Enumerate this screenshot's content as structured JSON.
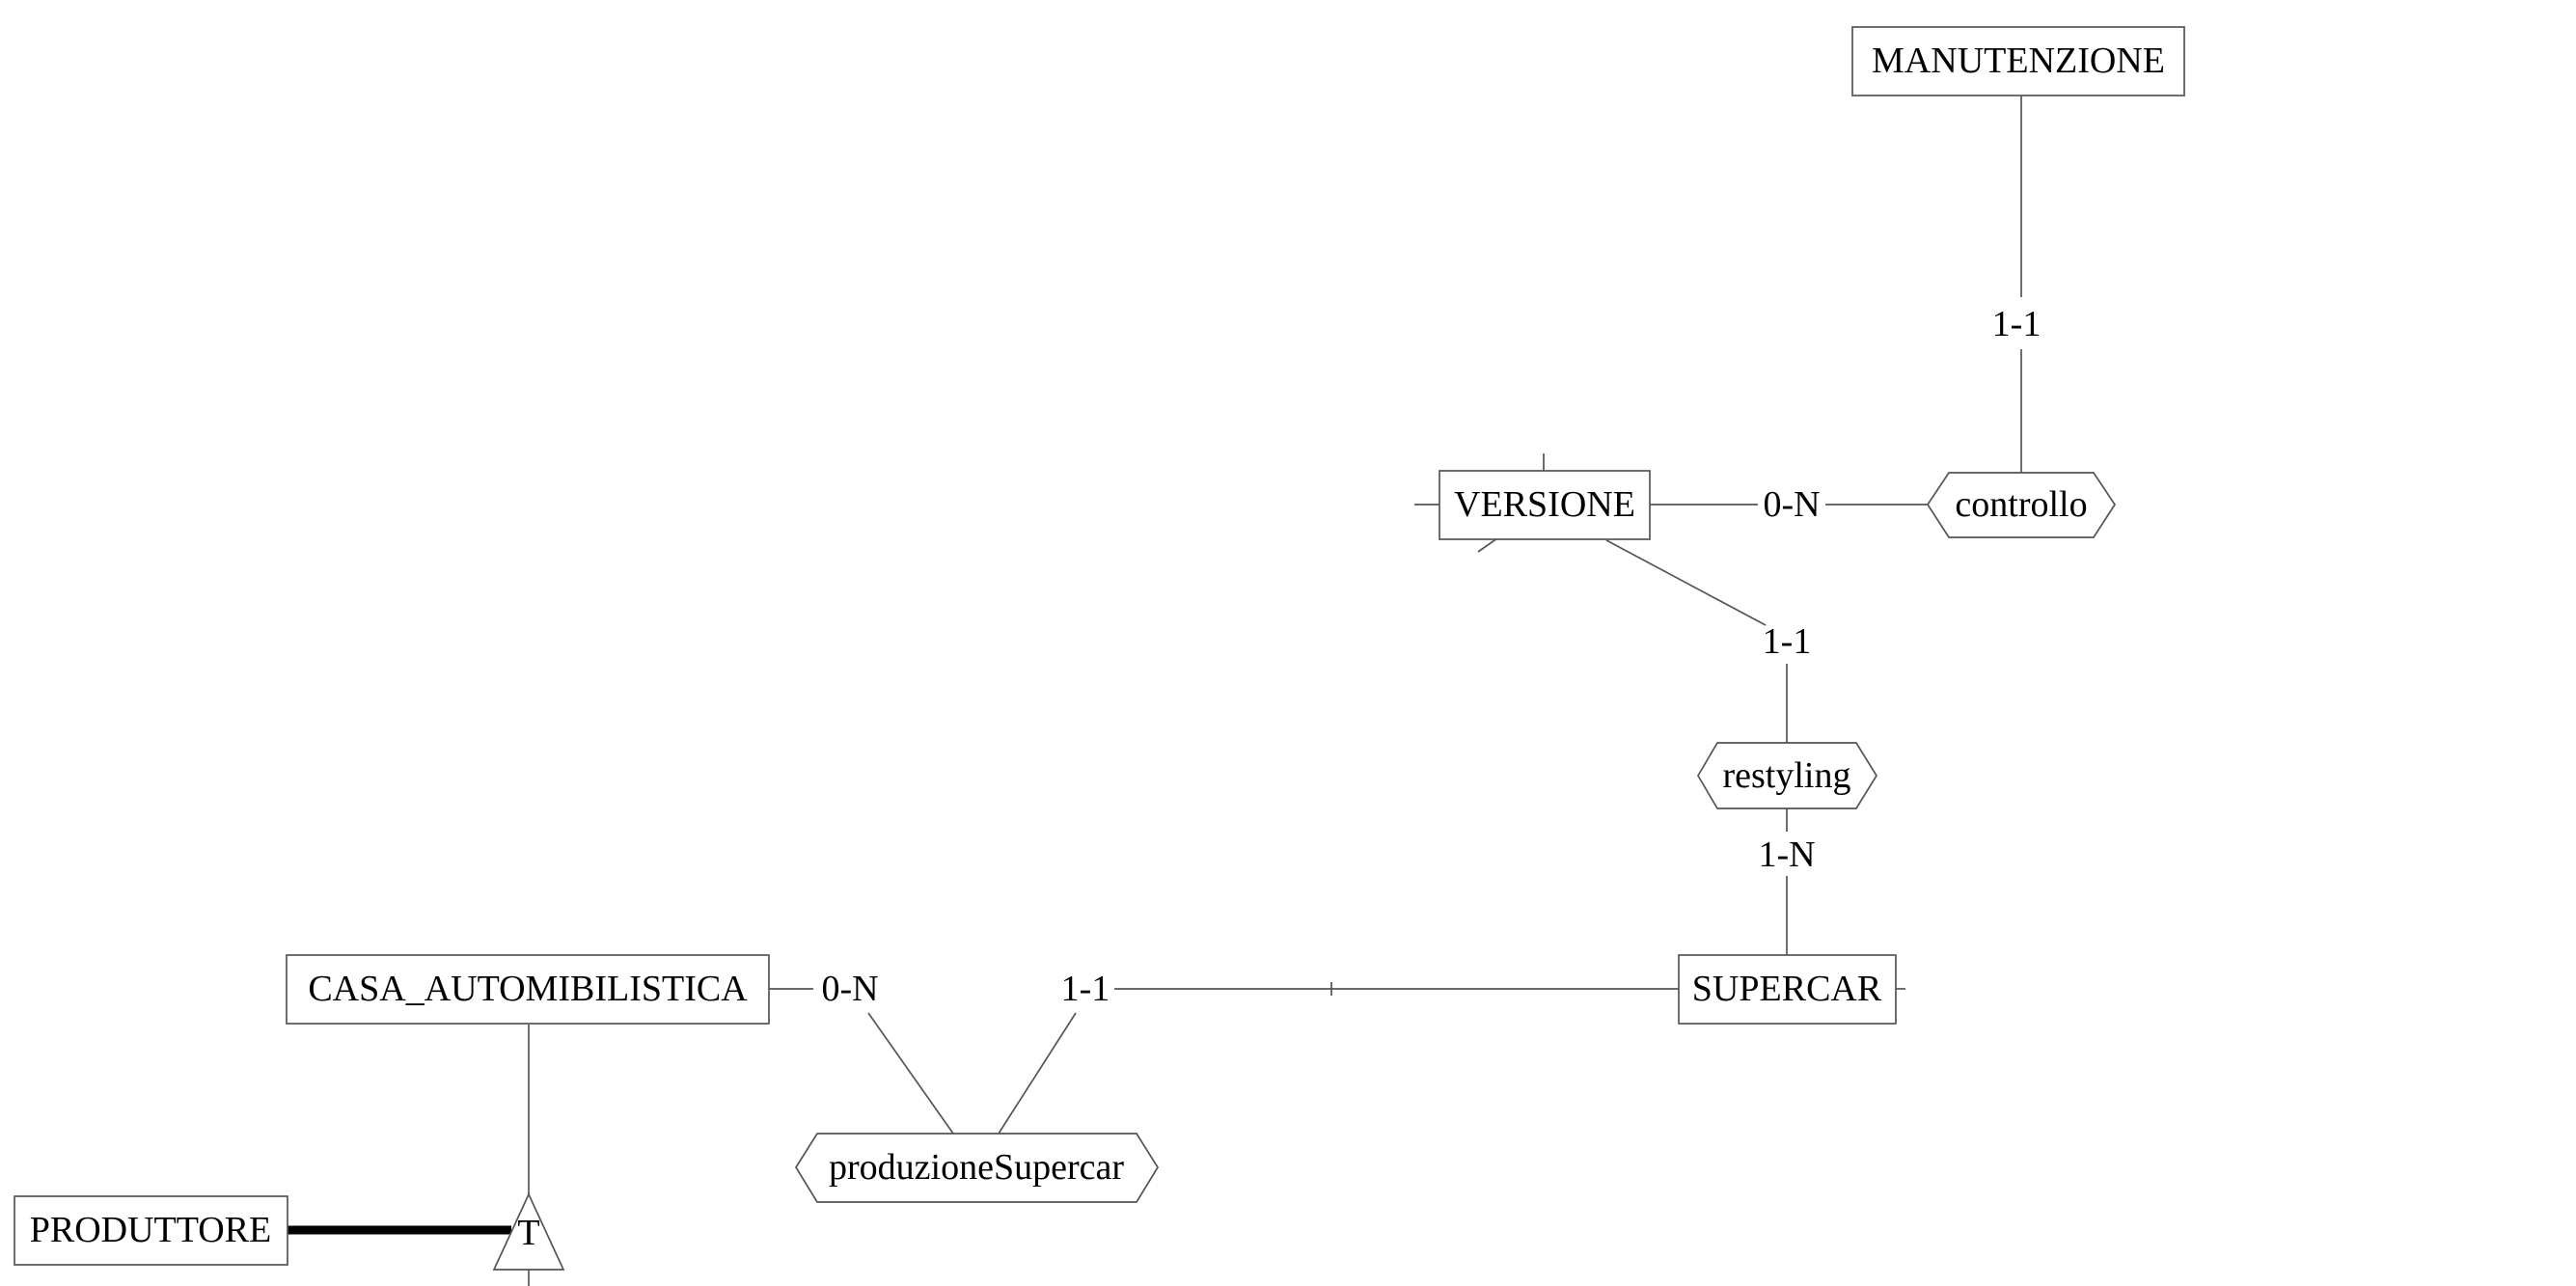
{
  "entities": {
    "manutenzione": "MANUTENZIONE",
    "versione": "VERSIONE",
    "supercar": "SUPERCAR",
    "casa_automobilistica": "CASA_AUTOMIBILISTICA",
    "produttore": "PRODUTTORE"
  },
  "relationships": {
    "controllo": "controllo",
    "restyling": "restyling",
    "produzione_supercar": "produzioneSupercar"
  },
  "cardinalities": {
    "manutenzione_controllo": "1-1",
    "versione_controllo": "0-N",
    "versione_restyling": "1-1",
    "supercar_restyling": "1-N",
    "casa_produzione": "0-N",
    "supercar_produzione": "1-1"
  },
  "generalization": {
    "type_label": "T"
  }
}
